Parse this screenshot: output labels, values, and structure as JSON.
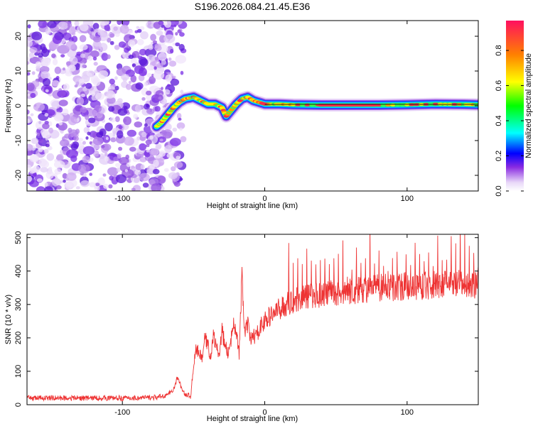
{
  "figure": {
    "title": "S196.2026.084.21.45.E36"
  },
  "chart_data": [
    {
      "type": "heatmap",
      "id": "spectrogram",
      "title": "S196.2026.084.21.45.E36",
      "xlabel": "Height of straight line (km)",
      "ylabel": "Frequency (Hz)",
      "xlim": [
        -167,
        150
      ],
      "ylim": [
        -24.5,
        24.5
      ],
      "xticks": [
        -100,
        0,
        100
      ],
      "yticks": [
        -20,
        -10,
        0,
        10,
        20
      ],
      "noise_region_x": [
        -167,
        -57
      ],
      "signal_trace": {
        "x": [
          -76,
          -73,
          -70,
          -67,
          -64,
          -60,
          -56,
          -50,
          -45,
          -40,
          -35,
          -30,
          -27,
          -24,
          -20,
          -16,
          -12,
          -8,
          -4,
          0,
          10,
          20,
          40,
          60,
          80,
          100,
          120,
          140,
          150
        ],
        "frequency_hz": [
          -6,
          -5,
          -3.5,
          -2,
          -0.5,
          1,
          2,
          2.5,
          1.5,
          0.5,
          0.5,
          -0.5,
          -3,
          -1.5,
          0.5,
          2,
          2.5,
          1.5,
          1,
          0.5,
          0.5,
          0.3,
          0.2,
          0.2,
          0.2,
          0.3,
          0.5,
          0.4,
          0.3
        ]
      },
      "colorbar": {
        "label": "Normalized spectral amplitude",
        "range": [
          0,
          0.97
        ],
        "ticks": [
          "0.0",
          "0.2",
          "0.4",
          "0.6",
          "0.8"
        ],
        "tick_values": [
          0.0,
          0.2,
          0.4,
          0.6,
          0.8
        ]
      }
    },
    {
      "type": "line",
      "id": "snr",
      "xlabel": "Height of straight line (km)",
      "ylabel": "SNR (10 * v/v)",
      "xlim": [
        -167,
        150
      ],
      "ylim": [
        0,
        510
      ],
      "xticks": [
        -100,
        0,
        100
      ],
      "yticks": [
        0,
        100,
        200,
        300,
        400,
        500
      ],
      "color": "#ee3333",
      "series": [
        {
          "name": "SNR",
          "x": [
            -167,
            -150,
            -130,
            -110,
            -90,
            -75,
            -68,
            -64,
            -61,
            -59,
            -57,
            -55,
            -52,
            -50,
            -48,
            -46,
            -44,
            -42,
            -40,
            -38,
            -36,
            -34,
            -32,
            -30,
            -28,
            -26,
            -24,
            -22,
            -20,
            -18,
            -16,
            -14,
            -12,
            -10,
            -8,
            -6,
            -4,
            -2,
            0,
            5,
            10,
            15,
            20,
            25,
            30,
            40,
            50,
            60,
            70,
            80,
            90,
            100,
            110,
            120,
            130,
            140,
            150
          ],
          "y": [
            20,
            20,
            20,
            20,
            20,
            22,
            30,
            45,
            85,
            55,
            35,
            30,
            25,
            120,
            170,
            150,
            140,
            200,
            180,
            140,
            210,
            170,
            150,
            220,
            180,
            155,
            175,
            260,
            220,
            150,
            380,
            210,
            240,
            190,
            210,
            200,
            230,
            240,
            250,
            270,
            285,
            300,
            310,
            320,
            325,
            330,
            335,
            340,
            345,
            350,
            352,
            355,
            355,
            358,
            360,
            360,
            360
          ]
        }
      ]
    }
  ]
}
